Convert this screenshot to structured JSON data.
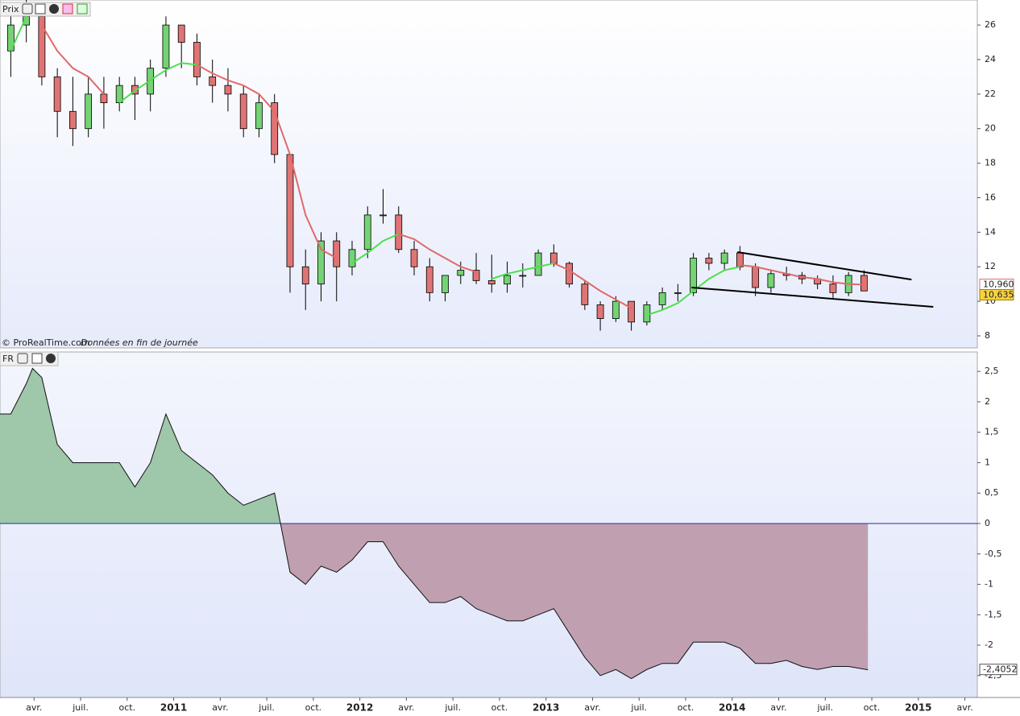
{
  "chart_data": [
    {
      "type": "candlestick",
      "panel_label": "Prix",
      "footer": "© ProRealTime.com",
      "footer_note": "Données en fin de journée",
      "xlim": [
        0.805,
        63.8
      ],
      "ylim": [
        7.3,
        27.45
      ],
      "yticks": [
        8,
        10,
        12,
        14,
        16,
        18,
        20,
        22,
        24,
        26
      ],
      "up_color": "#74d374",
      "down_color": "#e07474",
      "x": [
        1.5,
        2.5,
        3.5,
        4.5,
        5.5,
        6.5,
        7.5,
        8.5,
        9.5,
        10.5,
        11.5,
        12.5,
        13.5,
        14.5,
        15.5,
        16.5,
        17.5,
        18.5,
        19.5,
        20.5,
        21.5,
        22.5,
        23.5,
        24.5,
        25.5,
        26.5,
        27.5,
        28.5,
        29.5,
        30.5,
        31.5,
        32.5,
        33.5,
        34.5,
        35.5,
        36.5,
        37.5,
        38.5,
        39.5,
        40.5,
        41.5,
        42.5,
        43.5,
        44.5,
        45.5,
        46.5,
        47.5,
        48.5,
        49.5,
        50.5,
        51.5,
        52.5,
        53.5,
        54.5,
        55.5,
        56.5
      ],
      "open": [
        24.5,
        26,
        26.5,
        23,
        21,
        20,
        22,
        21.5,
        22.5,
        22,
        23.5,
        26,
        25,
        23,
        22.5,
        22,
        20,
        21.5,
        18.5,
        12,
        11,
        13.5,
        12,
        13,
        15,
        15,
        13,
        12,
        10.5,
        11.5,
        11.8,
        11.2,
        11,
        11.5,
        11.5,
        12.8,
        12.2,
        11,
        9.8,
        9,
        10,
        8.8,
        9.8,
        10.5,
        10.5,
        12.5,
        12.2,
        12.8,
        12,
        10.8,
        11.6,
        11.5,
        11.3,
        11,
        10.5,
        11.5
      ],
      "high": [
        27,
        27.5,
        27,
        23.5,
        23,
        23,
        23,
        23,
        23,
        24,
        26.5,
        26,
        25.5,
        24,
        23.5,
        22.5,
        22,
        22,
        18.5,
        13,
        14,
        14,
        13.5,
        15.5,
        16.5,
        15.5,
        13.5,
        12.5,
        11.5,
        12.3,
        12.8,
        12.7,
        12.3,
        12.2,
        13,
        13.3,
        12.3,
        11.2,
        10,
        10.3,
        10,
        10,
        10.8,
        11,
        12.8,
        12.8,
        13,
        13.2,
        12.2,
        11.8,
        12,
        11.7,
        11.5,
        11.5,
        11.7,
        11.8
      ],
      "low": [
        23,
        25,
        22.5,
        19.5,
        19,
        19.5,
        20,
        21,
        20.5,
        21,
        23,
        23.5,
        22.5,
        21.5,
        21,
        19.5,
        19.5,
        18,
        10.5,
        9.5,
        10,
        10,
        11.5,
        12.5,
        14.5,
        12.8,
        11.5,
        10,
        10,
        11,
        11,
        10.5,
        10.5,
        10.8,
        11.5,
        12,
        10.8,
        9.5,
        8.3,
        8.8,
        8.3,
        8.6,
        9.5,
        10,
        10.3,
        11.8,
        11.8,
        11.8,
        10.3,
        10.5,
        11.2,
        11,
        10.7,
        10.2,
        10.3,
        10.6
      ],
      "close": [
        26,
        26.5,
        23,
        21,
        20,
        22,
        21.5,
        22.5,
        22,
        23.5,
        26,
        25,
        23,
        22.5,
        22,
        20,
        21.5,
        18.5,
        12,
        11,
        13.5,
        12,
        13,
        15,
        15,
        13,
        12,
        10.5,
        11.5,
        11.8,
        11.2,
        11,
        11.5,
        11.5,
        12.8,
        12.2,
        11,
        9.8,
        9,
        10,
        8.8,
        9.8,
        10.5,
        10.5,
        12.5,
        12.2,
        12.8,
        12,
        10.8,
        11.6,
        11.5,
        11.3,
        11,
        10.5,
        11.5,
        10.6
      ],
      "series": [
        {
          "color": "#4ce04c",
          "values": [
            24.5,
            26.5,
            null,
            null,
            null,
            null,
            null,
            21.5,
            22.2,
            22.8,
            23.4,
            23.8,
            23.7,
            null,
            null,
            null,
            null,
            null,
            null,
            null,
            null,
            null,
            12.2,
            12.8,
            13.5,
            13.9,
            null,
            null,
            null,
            null,
            null,
            11.3,
            11.6,
            11.8,
            12,
            12.2,
            null,
            null,
            null,
            null,
            null,
            9.2,
            9.5,
            9.9,
            10.6,
            11.3,
            11.8,
            12,
            null,
            null,
            null,
            null,
            null,
            null,
            null,
            null
          ]
        },
        {
          "color": "#e06a6a",
          "values": [
            null,
            null,
            26,
            24.5,
            23.5,
            23,
            22,
            null,
            null,
            null,
            null,
            null,
            23.7,
            23.2,
            22.8,
            22.5,
            22,
            21,
            18.5,
            15,
            13,
            12.5,
            null,
            null,
            null,
            13.9,
            13.6,
            13,
            12.5,
            12,
            11.7,
            null,
            null,
            null,
            null,
            12.2,
            11.8,
            11.2,
            10.6,
            10.1,
            9.6,
            null,
            null,
            null,
            null,
            null,
            null,
            12.1,
            12,
            11.8,
            11.6,
            11.4,
            11.3,
            11.1,
            11,
            10.96
          ]
        }
      ],
      "trendlines": [
        {
          "x": [
            48.34,
            59.56
          ],
          "y": [
            12.85,
            11.26
          ]
        },
        {
          "x": [
            45.38,
            60.96
          ],
          "y": [
            10.8,
            9.68
          ]
        }
      ],
      "ma_value": {
        "value": 10.96,
        "label": "10,960"
      },
      "last_price": {
        "value": 10.635,
        "label": "10,635"
      }
    },
    {
      "type": "area",
      "panel_label": "FR",
      "xlim": [
        0.805,
        63.8
      ],
      "ylim": [
        -2.86,
        2.82
      ],
      "yticks": [
        {
          "value": 2.5,
          "label": "2,5"
        },
        2,
        {
          "value": 1.5,
          "label": "1,5"
        },
        1,
        {
          "value": 0.5,
          "label": "0,5"
        },
        0,
        {
          "value": -0.5,
          "label": "-0,5"
        },
        -1,
        {
          "value": -1.5,
          "label": "-1,5"
        },
        -2,
        {
          "value": -2.5,
          "label": "-2,5"
        }
      ],
      "xticks": [
        {
          "value": 3,
          "label": "avr."
        },
        {
          "value": 6,
          "label": "juil."
        },
        {
          "value": 9,
          "label": "oct."
        },
        {
          "value": 12,
          "label": "2011"
        },
        {
          "value": 15,
          "label": "avr."
        },
        {
          "value": 18,
          "label": "juil."
        },
        {
          "value": 21,
          "label": "oct."
        },
        {
          "value": 24,
          "label": "2012"
        },
        {
          "value": 27,
          "label": "avr."
        },
        {
          "value": 30,
          "label": "juil."
        },
        {
          "value": 33,
          "label": "oct."
        },
        {
          "value": 36,
          "label": "2013"
        },
        {
          "value": 39,
          "label": "avr."
        },
        {
          "value": 42,
          "label": "juil."
        },
        {
          "value": 45,
          "label": "oct."
        },
        {
          "value": 48,
          "label": "2014"
        },
        {
          "value": 51,
          "label": "avr."
        },
        {
          "value": 54,
          "label": "juil."
        },
        {
          "value": 57,
          "label": "oct."
        },
        {
          "value": 60,
          "label": "2015"
        },
        {
          "value": 63,
          "label": "avr."
        }
      ],
      "pos_color": "#9fc7aa",
      "neg_color": "#c0a0b0",
      "zero_color": "#2a2aa0",
      "x": [
        0.805,
        1.5,
        2.5,
        2.9,
        3.5,
        4.5,
        5.5,
        6.5,
        7.5,
        8.5,
        9.5,
        10.5,
        11.5,
        12.5,
        13.5,
        14.5,
        15.5,
        16.5,
        17.5,
        18.5,
        19.5,
        20.5,
        21.5,
        22.5,
        23.5,
        24.5,
        25.5,
        26.5,
        27.5,
        28.5,
        29.5,
        30.5,
        31.5,
        32.5,
        33.5,
        34.5,
        35.5,
        36.5,
        37.5,
        38.5,
        39.5,
        40.5,
        41.5,
        42.5,
        43.5,
        44.5,
        45.5,
        46.5,
        47.5,
        48.5,
        49.5,
        50.5,
        51.5,
        52.5,
        53.5,
        54.5,
        55.5,
        56.75
      ],
      "values": [
        1.8,
        1.8,
        2.3,
        2.55,
        2.4,
        1.3,
        1.0,
        1.0,
        1.0,
        1.0,
        0.6,
        1.0,
        1.8,
        1.2,
        1.0,
        0.8,
        0.5,
        0.3,
        0.4,
        0.5,
        -0.8,
        -1.0,
        -0.7,
        -0.8,
        -0.6,
        -0.3,
        -0.3,
        -0.7,
        -1.0,
        -1.3,
        -1.3,
        -1.2,
        -1.4,
        -1.5,
        -1.6,
        -1.6,
        -1.5,
        -1.4,
        -1.8,
        -2.2,
        -2.5,
        -2.4,
        -2.55,
        -2.4,
        -2.3,
        -2.3,
        -1.95,
        -1.95,
        -1.95,
        -2.05,
        -2.3,
        -2.3,
        -2.25,
        -2.35,
        -2.4,
        -2.35,
        -2.35,
        -2.4052
      ],
      "last_value": {
        "value": -2.4052,
        "label": "-2,4052"
      }
    }
  ]
}
